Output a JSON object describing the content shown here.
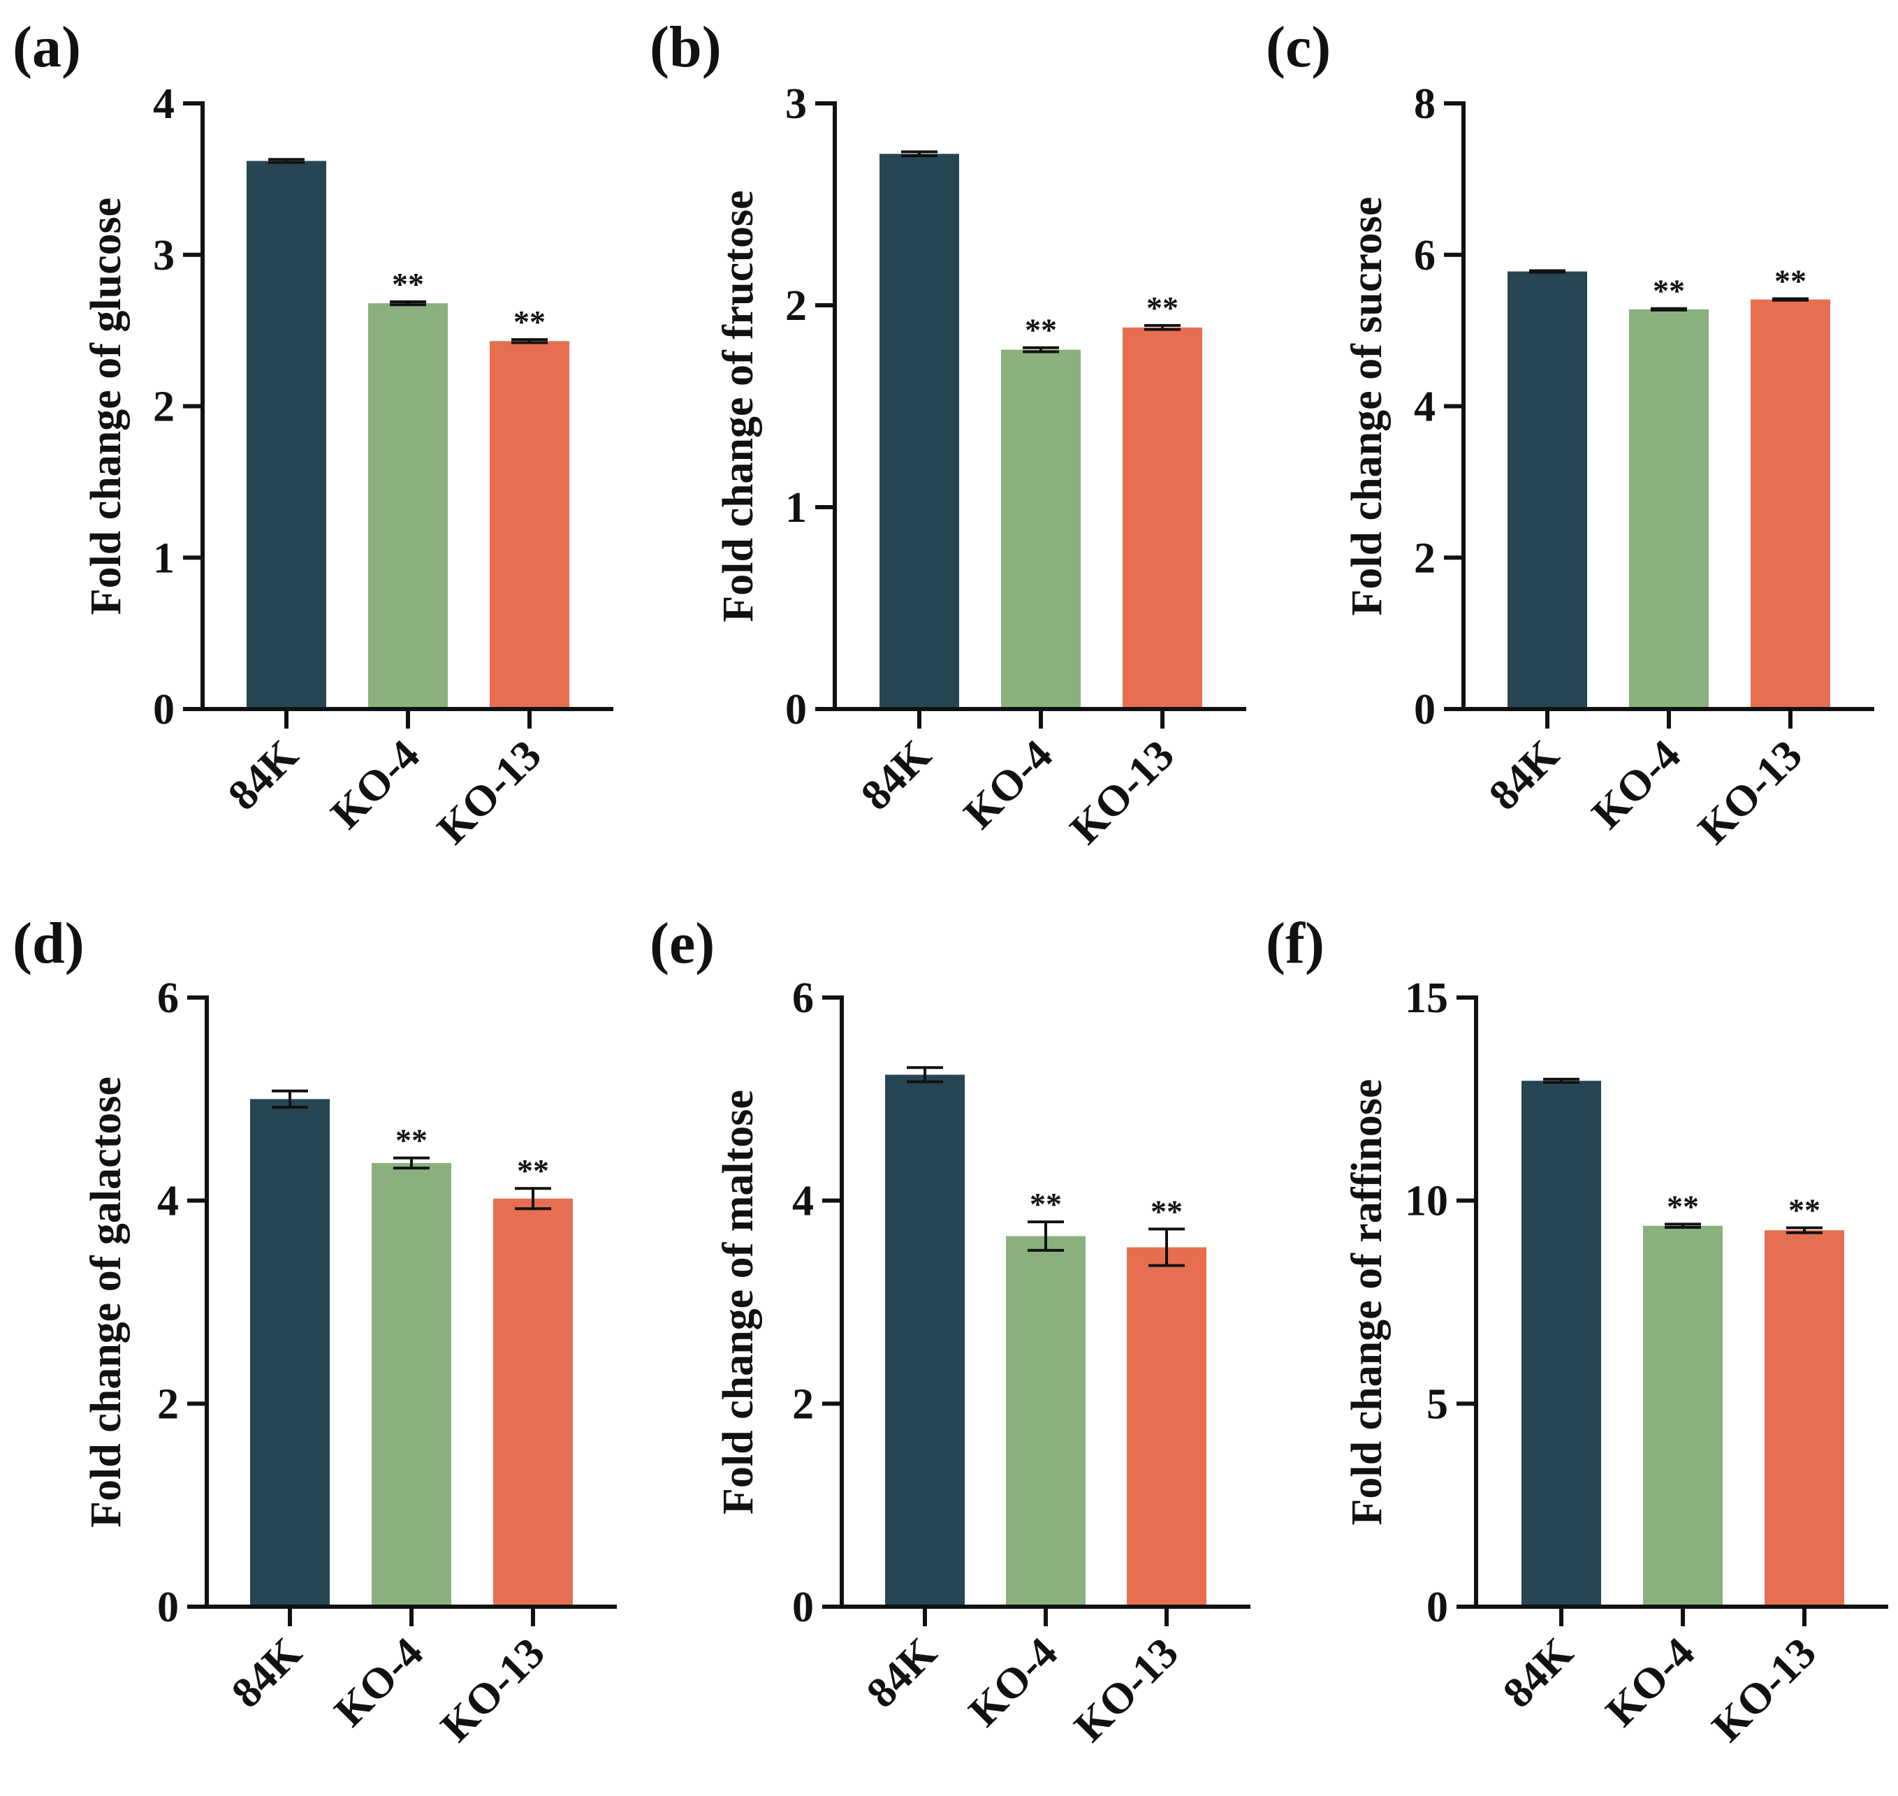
{
  "colors": {
    "84K": "#264653",
    "KO-4": "#8ab17d",
    "KO-13": "#e76f51",
    "axis": "#111111"
  },
  "chart_data": [
    {
      "panel": "(a)",
      "type": "bar",
      "categories": [
        "84K",
        "KO-4",
        "KO-13"
      ],
      "values": [
        3.62,
        2.68,
        2.43
      ],
      "errors": [
        0.01,
        0.01,
        0.01
      ],
      "significance": [
        "",
        "**",
        "**"
      ],
      "ylabel": "Fold change of glucose",
      "ylim": [
        0,
        4
      ],
      "yticks": [
        0,
        1,
        2,
        3,
        4
      ]
    },
    {
      "panel": "(b)",
      "type": "bar",
      "categories": [
        "84K",
        "KO-4",
        "KO-13"
      ],
      "values": [
        2.75,
        1.78,
        1.89
      ],
      "errors": [
        0.01,
        0.01,
        0.01
      ],
      "significance": [
        "",
        "**",
        "**"
      ],
      "ylabel": "Fold change of fructose",
      "ylim": [
        0,
        3
      ],
      "yticks": [
        0,
        1,
        2,
        3
      ]
    },
    {
      "panel": "(c)",
      "type": "bar",
      "categories": [
        "84K",
        "KO-4",
        "KO-13"
      ],
      "values": [
        5.78,
        5.28,
        5.41
      ],
      "errors": [
        0.01,
        0.01,
        0.01
      ],
      "significance": [
        "",
        "**",
        "**"
      ],
      "ylabel": "Fold change of sucrose",
      "ylim": [
        0,
        8
      ],
      "yticks": [
        0,
        2,
        4,
        6,
        8
      ]
    },
    {
      "panel": "(d)",
      "type": "bar",
      "categories": [
        "84K",
        "KO-4",
        "KO-13"
      ],
      "values": [
        5.0,
        4.37,
        4.02
      ],
      "errors": [
        0.08,
        0.05,
        0.1
      ],
      "significance": [
        "",
        "**",
        "**"
      ],
      "ylabel": "Fold change of galactose",
      "ylim": [
        0,
        6
      ],
      "yticks": [
        0,
        2,
        4,
        6
      ]
    },
    {
      "panel": "(e)",
      "type": "bar",
      "categories": [
        "84K",
        "KO-4",
        "KO-13"
      ],
      "values": [
        5.24,
        3.65,
        3.54
      ],
      "errors": [
        0.07,
        0.14,
        0.18
      ],
      "significance": [
        "",
        "**",
        "**"
      ],
      "ylabel": "Fold change of maltose",
      "ylim": [
        0,
        6
      ],
      "yticks": [
        0,
        2,
        4,
        6
      ]
    },
    {
      "panel": "(f)",
      "type": "bar",
      "categories": [
        "84K",
        "KO-4",
        "KO-13"
      ],
      "values": [
        12.95,
        9.38,
        9.27
      ],
      "errors": [
        0.04,
        0.04,
        0.06
      ],
      "significance": [
        "",
        "**",
        "**"
      ],
      "ylabel": "Fold change of raffinose",
      "ylim": [
        0,
        15
      ],
      "yticks": [
        0,
        5,
        10,
        15
      ]
    }
  ]
}
